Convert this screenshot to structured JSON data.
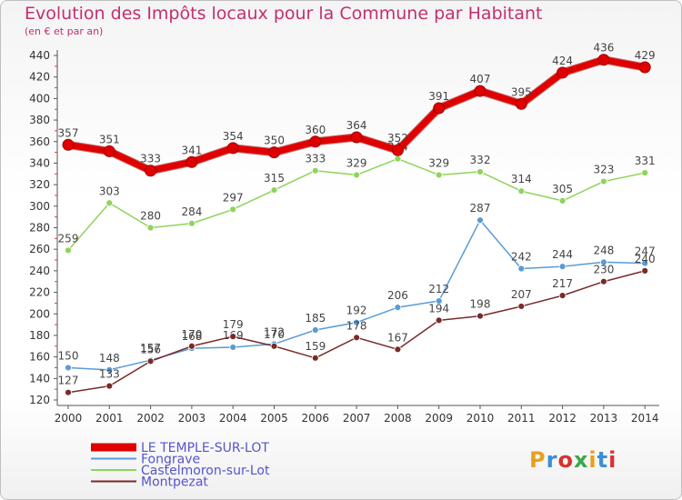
{
  "header": {
    "title": "Evolution des Impôts locaux pour la Commune par Habitant",
    "subtitle": "(en € et par an)"
  },
  "logo": {
    "text": "Proxiti",
    "colors": [
      "#e8a020",
      "#3a8fd6",
      "#d93030",
      "#3aa84a",
      "#e8a020",
      "#3a8fd6",
      "#d93030"
    ]
  },
  "chart_data": {
    "type": "line",
    "x": [
      2000,
      2001,
      2002,
      2003,
      2004,
      2005,
      2006,
      2007,
      2008,
      2009,
      2010,
      2011,
      2012,
      2013,
      2014
    ],
    "xticks": [
      "2000",
      "2001",
      "2002",
      "2003",
      "2004",
      "2005",
      "2006",
      "2007",
      "2008",
      "2009",
      "2010",
      "2011",
      "2012",
      "2013",
      "2014"
    ],
    "ylim": [
      120,
      440
    ],
    "yticks": [
      120,
      140,
      160,
      180,
      200,
      220,
      240,
      260,
      280,
      300,
      320,
      340,
      360,
      380,
      400,
      420,
      440
    ],
    "grid": false,
    "legend_position": "bottom-left",
    "series": [
      {
        "name": "LE TEMPLE-SUR-LOT",
        "color": "#e00000",
        "text_color": "#5555cc",
        "width": 7,
        "values": [
          357,
          351,
          333,
          341,
          354,
          350,
          360,
          364,
          352,
          391,
          407,
          395,
          424,
          436,
          429
        ]
      },
      {
        "name": "Fongrave",
        "color": "#5a9bd5",
        "text_color": "#5555cc",
        "width": 1.5,
        "values": [
          150,
          148,
          157,
          168,
          169,
          172,
          185,
          192,
          206,
          212,
          287,
          242,
          244,
          248,
          247
        ]
      },
      {
        "name": "Castelmoron-sur-Lot",
        "color": "#8fd45a",
        "text_color": "#5555cc",
        "width": 1.5,
        "values": [
          259,
          303,
          280,
          284,
          297,
          315,
          333,
          329,
          344,
          329,
          332,
          314,
          305,
          323,
          331
        ]
      },
      {
        "name": "Montpezat",
        "color": "#7a2a2a",
        "text_color": "#5555cc",
        "width": 1.5,
        "values": [
          127,
          133,
          156,
          170,
          179,
          170,
          159,
          178,
          167,
          194,
          198,
          207,
          217,
          230,
          240
        ]
      }
    ]
  }
}
